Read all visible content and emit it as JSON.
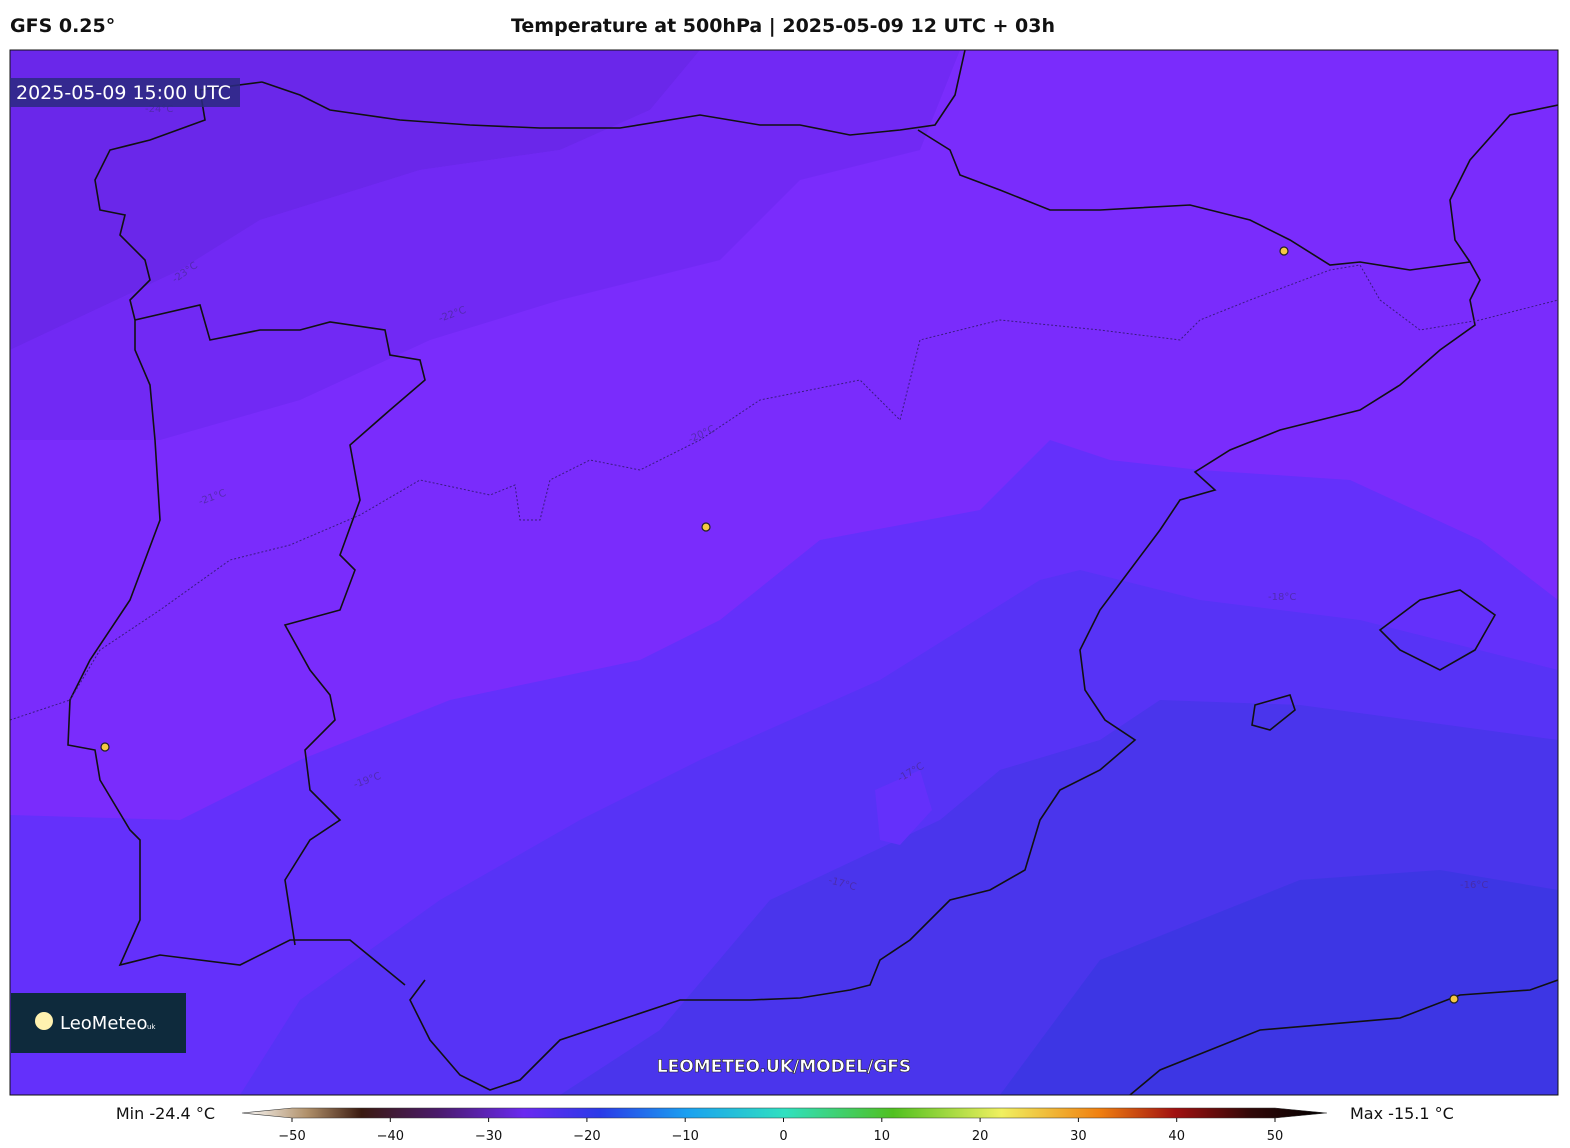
{
  "header": {
    "model": "GFS 0.25°",
    "title": "Temperature at 500hPa | 2025-05-09 12 UTC + 03h"
  },
  "map": {
    "valid_time": "2025-05-09 15:00 UTC",
    "contour_labels": [
      "-24°C",
      "-23°C",
      "-22°C",
      "-21°C",
      "-20°C",
      "-19°C",
      "-18°C",
      "-17°C",
      "-17°C",
      "-16°C"
    ],
    "logo": "LeoMeteo",
    "logo_suffix": "uk",
    "url": "LEOMETEO.UK/MODEL/GFS"
  },
  "colorbar": {
    "min_label": "Min -24.4 °C",
    "max_label": "Max -15.1 °C",
    "ticks": [
      {
        "value": -50,
        "label": "−50"
      },
      {
        "value": -40,
        "label": "−40"
      },
      {
        "value": -30,
        "label": "−30"
      },
      {
        "value": -20,
        "label": "−20"
      },
      {
        "value": -10,
        "label": "−10"
      },
      0,
      10,
      20,
      30,
      40,
      50
    ]
  }
}
